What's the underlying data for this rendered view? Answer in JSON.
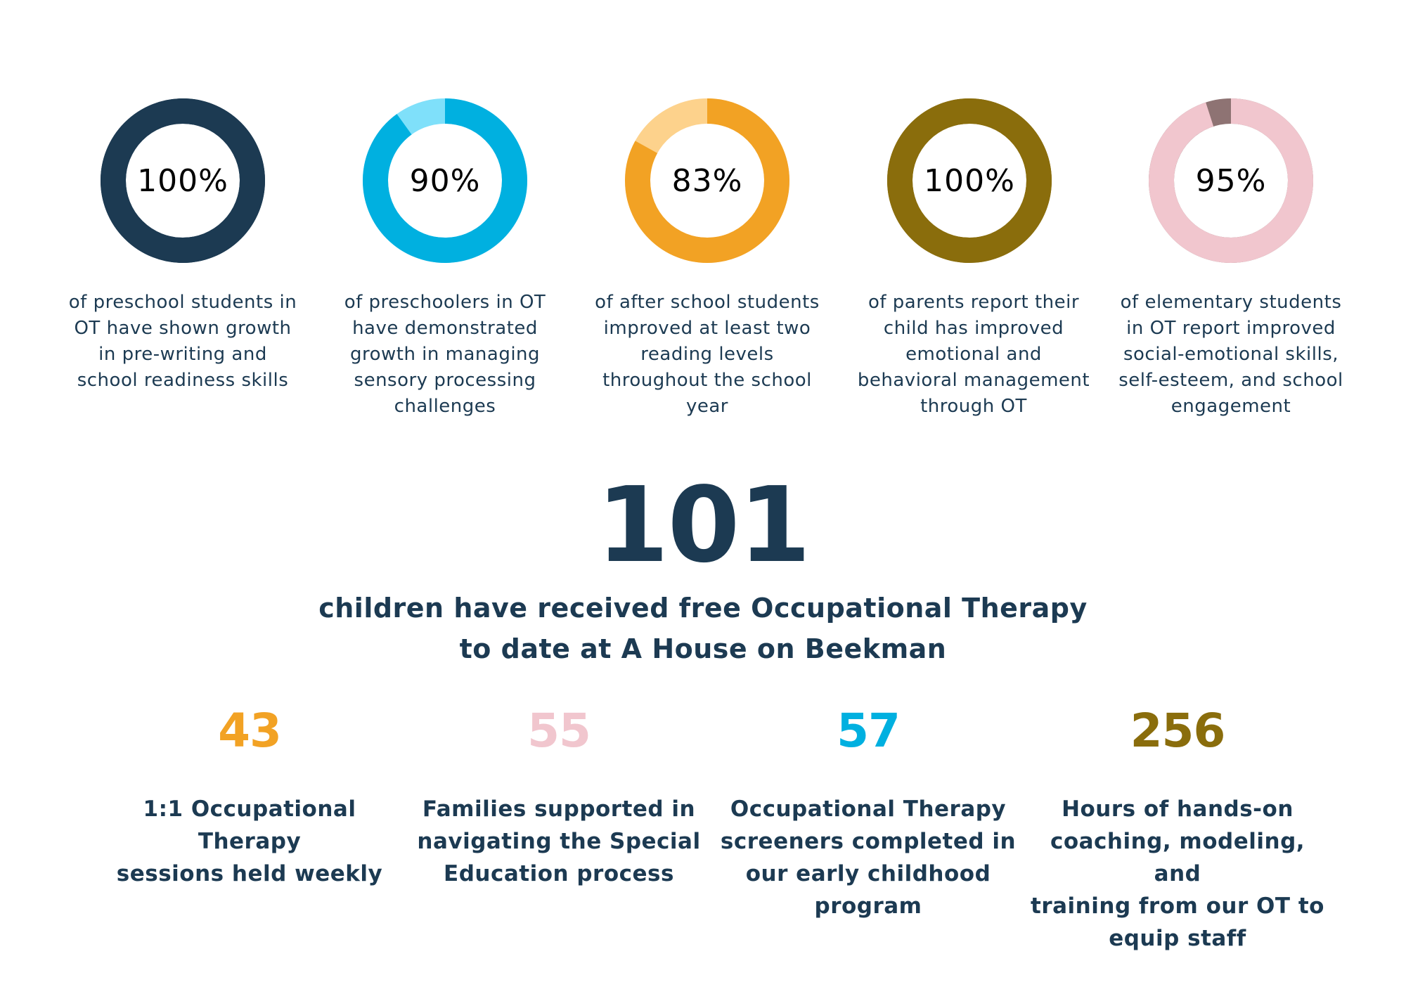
{
  "chart_data": {
    "type": "pie",
    "items": [
      {
        "percent": 100,
        "label": "100%",
        "caption_lines": [
          "of preschool students in",
          "OT have shown growth",
          "in pre-writing and",
          "school readiness skills"
        ],
        "color": "#1c3a52",
        "remainder_color": "#1c3a52"
      },
      {
        "percent": 90,
        "label": "90%",
        "caption_lines": [
          "of preschoolers in OT",
          "have demonstrated",
          "growth in managing",
          "sensory processing",
          "challenges"
        ],
        "color": "#00b0e0",
        "remainder_color": "#7fe0fa"
      },
      {
        "percent": 83,
        "label": "83%",
        "caption_lines": [
          "of after school students",
          "improved at least two",
          "reading levels",
          "throughout the school",
          "year"
        ],
        "color": "#f2a224",
        "remainder_color": "#fdd28c"
      },
      {
        "percent": 100,
        "label": "100%",
        "caption_lines": [
          "of parents report their",
          "child has improved",
          "emotional and",
          "behavioral management",
          "through OT"
        ],
        "color": "#8a6d0c",
        "remainder_color": "#8a6d0c"
      },
      {
        "percent": 95,
        "label": "95%",
        "caption_lines": [
          "of elementary students",
          "in OT report improved",
          "social-emotional skills,",
          "self-esteem, and school",
          "engagement"
        ],
        "color": "#f1c6ce",
        "remainder_color": "#8e7373"
      }
    ]
  },
  "headline": {
    "number": "101",
    "line1": "children have received free Occupational Therapy",
    "line2": "to date at A House on Beekman"
  },
  "stats": [
    {
      "number": "43",
      "color": "#f2a224",
      "lines": [
        "1:1 Occupational Therapy",
        "sessions held weekly"
      ]
    },
    {
      "number": "55",
      "color": "#f1c6ce",
      "lines": [
        "Families supported in",
        "navigating the Special",
        "Education process"
      ]
    },
    {
      "number": "57",
      "color": "#00b0e0",
      "lines": [
        "Occupational Therapy",
        "screeners completed in",
        "our early childhood",
        "program"
      ]
    },
    {
      "number": "256",
      "color": "#8a6d0c",
      "lines": [
        "Hours of hands-on",
        "coaching, modeling, and",
        "training from our OT to",
        "equip staff"
      ]
    }
  ]
}
